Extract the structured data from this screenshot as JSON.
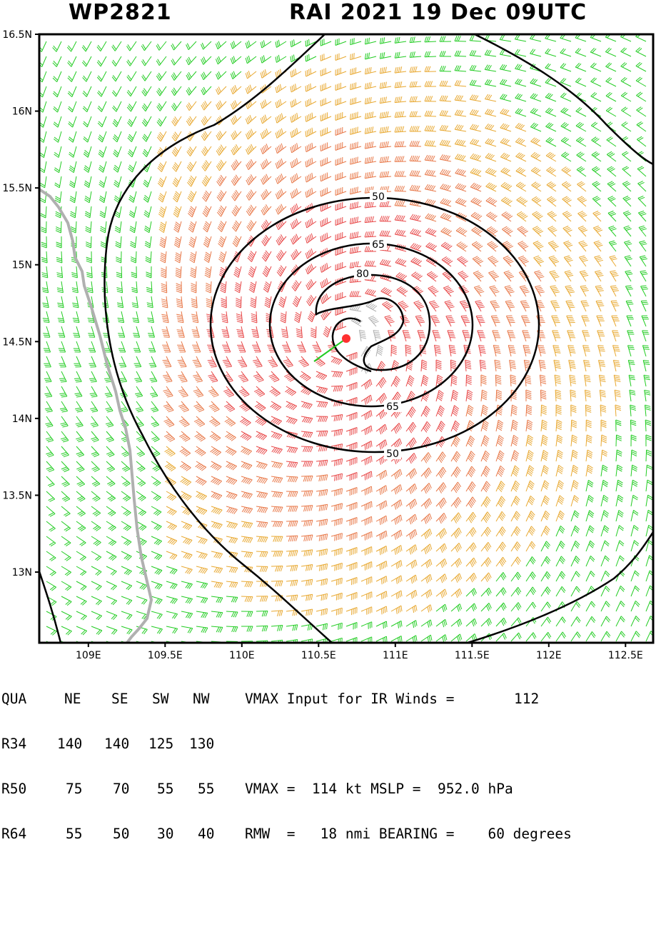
{
  "header": {
    "storm_id": "WP2821",
    "storm_info": "RAI 2021 19 Dec 09UTC"
  },
  "map": {
    "lat_labels": [
      "16.5N",
      "16N",
      "15.5N",
      "15N",
      "14.5N",
      "14N",
      "13.5N",
      "13N"
    ],
    "lon_labels": [
      "109E",
      "109.5E",
      "110E",
      "110.5E",
      "111E",
      "111.5E",
      "112E",
      "112.5E"
    ],
    "lon_range": [
      108.68,
      112.68
    ],
    "lat_range": [
      12.54,
      16.5
    ],
    "center": {
      "lon": 110.68,
      "lat": 14.52
    },
    "contours": [
      {
        "value": "50",
        "label_top": "50",
        "label_bottom": "50"
      },
      {
        "value": "65",
        "label_top": "65",
        "label_bottom": "65"
      },
      {
        "value": "80",
        "label_top": "80"
      }
    ],
    "colors": {
      "below_34kt": "#22cc22",
      "34_to_50kt": "#e8a830",
      "50_to_64kt": "#e87848",
      "above_64kt": "#e84848",
      "eye": "#b0b0b0",
      "coast": "#b0b0b0",
      "center_marker": "#ff3030"
    }
  },
  "table": {
    "header": {
      "label": "QUA",
      "ne": "NE",
      "se": "SE",
      "sw": "SW",
      "nw": "NW",
      "note": "VMAX Input for IR Winds =",
      "note_value": "112"
    },
    "rows": [
      {
        "label": "R34",
        "ne": "140",
        "se": "140",
        "sw": "125",
        "nw": "130",
        "note": ""
      },
      {
        "label": "R50",
        "ne": "75",
        "se": "70",
        "sw": "55",
        "nw": "55",
        "note": "VMAX =  114 kt MSLP =  952.0 hPa"
      },
      {
        "label": "R64",
        "ne": "55",
        "se": "50",
        "sw": "30",
        "nw": "40",
        "note": "RMW  =   18 nmi BEARING =    60 degrees"
      }
    ]
  }
}
